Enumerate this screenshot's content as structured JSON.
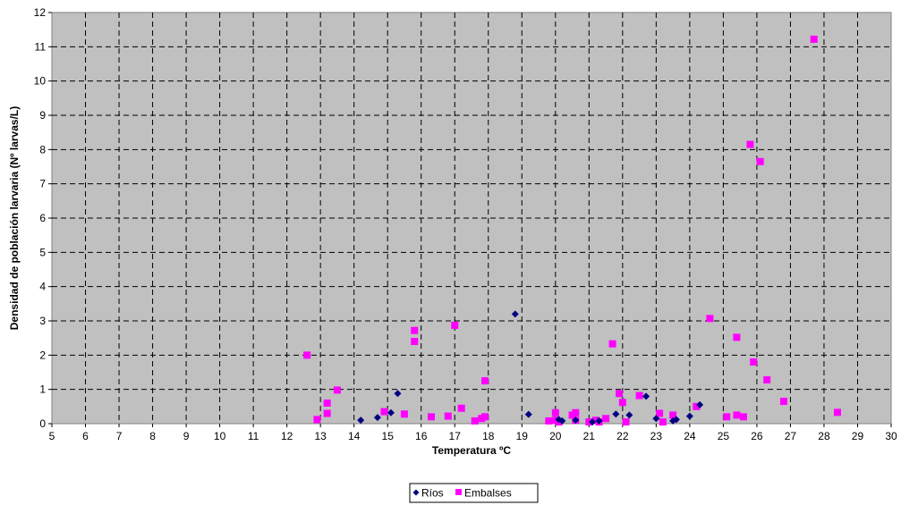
{
  "chart_data": {
    "type": "scatter",
    "xlabel": "Temperatura ºC",
    "ylabel": "Densidad de población larvaria (Nº larvas/L)",
    "xlim": [
      5,
      30
    ],
    "ylim": [
      0,
      12
    ],
    "x_ticks": [
      "5",
      "6",
      "7",
      "8",
      "9",
      "10",
      "11",
      "12",
      "13",
      "14",
      "15",
      "16",
      "17",
      "18",
      "19",
      "20",
      "21",
      "22",
      "23",
      "24",
      "25",
      "26",
      "27",
      "28",
      "29",
      "30"
    ],
    "y_ticks": [
      "0",
      "1",
      "2",
      "3",
      "4",
      "5",
      "6",
      "7",
      "8",
      "9",
      "10",
      "11",
      "12"
    ],
    "grid": true,
    "legend_position": "bottom",
    "colors": {
      "plot_background": "#c0c0c0",
      "rios": "#000080",
      "embalses": "#ff00ff"
    },
    "series": [
      {
        "name": "Ríos",
        "marker": "diamond",
        "points": [
          [
            14.2,
            0.1
          ],
          [
            14.7,
            0.18
          ],
          [
            15.1,
            0.32
          ],
          [
            15.3,
            0.88
          ],
          [
            18.8,
            3.2
          ],
          [
            19.2,
            0.27
          ],
          [
            20.1,
            0.12
          ],
          [
            20.2,
            0.08
          ],
          [
            20.6,
            0.1
          ],
          [
            21.1,
            0.05
          ],
          [
            21.3,
            0.08
          ],
          [
            21.8,
            0.28
          ],
          [
            22.2,
            0.25
          ],
          [
            22.7,
            0.8
          ],
          [
            23.0,
            0.15
          ],
          [
            23.5,
            0.08
          ],
          [
            23.6,
            0.12
          ],
          [
            24.0,
            0.22
          ],
          [
            24.3,
            0.55
          ]
        ]
      },
      {
        "name": "Embalses",
        "marker": "square",
        "points": [
          [
            12.6,
            2.0
          ],
          [
            12.9,
            0.12
          ],
          [
            13.2,
            0.6
          ],
          [
            13.2,
            0.3
          ],
          [
            13.5,
            0.98
          ],
          [
            14.9,
            0.35
          ],
          [
            15.5,
            0.28
          ],
          [
            15.8,
            2.72
          ],
          [
            15.8,
            2.4
          ],
          [
            16.3,
            0.2
          ],
          [
            16.8,
            0.22
          ],
          [
            17.0,
            2.87
          ],
          [
            17.2,
            0.45
          ],
          [
            17.6,
            0.08
          ],
          [
            17.8,
            0.15
          ],
          [
            17.9,
            0.2
          ],
          [
            17.9,
            1.25
          ],
          [
            19.8,
            0.08
          ],
          [
            20.0,
            0.32
          ],
          [
            20.0,
            0.1
          ],
          [
            20.1,
            0.05
          ],
          [
            20.5,
            0.25
          ],
          [
            20.6,
            0.32
          ],
          [
            20.6,
            0.1
          ],
          [
            21.0,
            0.05
          ],
          [
            21.2,
            0.1
          ],
          [
            21.3,
            0.05
          ],
          [
            21.5,
            0.15
          ],
          [
            21.7,
            2.33
          ],
          [
            21.9,
            0.88
          ],
          [
            22.0,
            0.62
          ],
          [
            22.1,
            0.05
          ],
          [
            22.5,
            0.82
          ],
          [
            23.1,
            0.3
          ],
          [
            23.2,
            0.05
          ],
          [
            23.5,
            0.25
          ],
          [
            24.2,
            0.5
          ],
          [
            24.6,
            3.07
          ],
          [
            25.1,
            0.2
          ],
          [
            25.4,
            2.52
          ],
          [
            25.4,
            0.25
          ],
          [
            25.6,
            0.2
          ],
          [
            25.8,
            8.15
          ],
          [
            25.9,
            1.8
          ],
          [
            26.1,
            7.65
          ],
          [
            26.3,
            1.28
          ],
          [
            26.8,
            0.65
          ],
          [
            27.7,
            11.22
          ],
          [
            28.4,
            0.33
          ]
        ]
      }
    ]
  }
}
